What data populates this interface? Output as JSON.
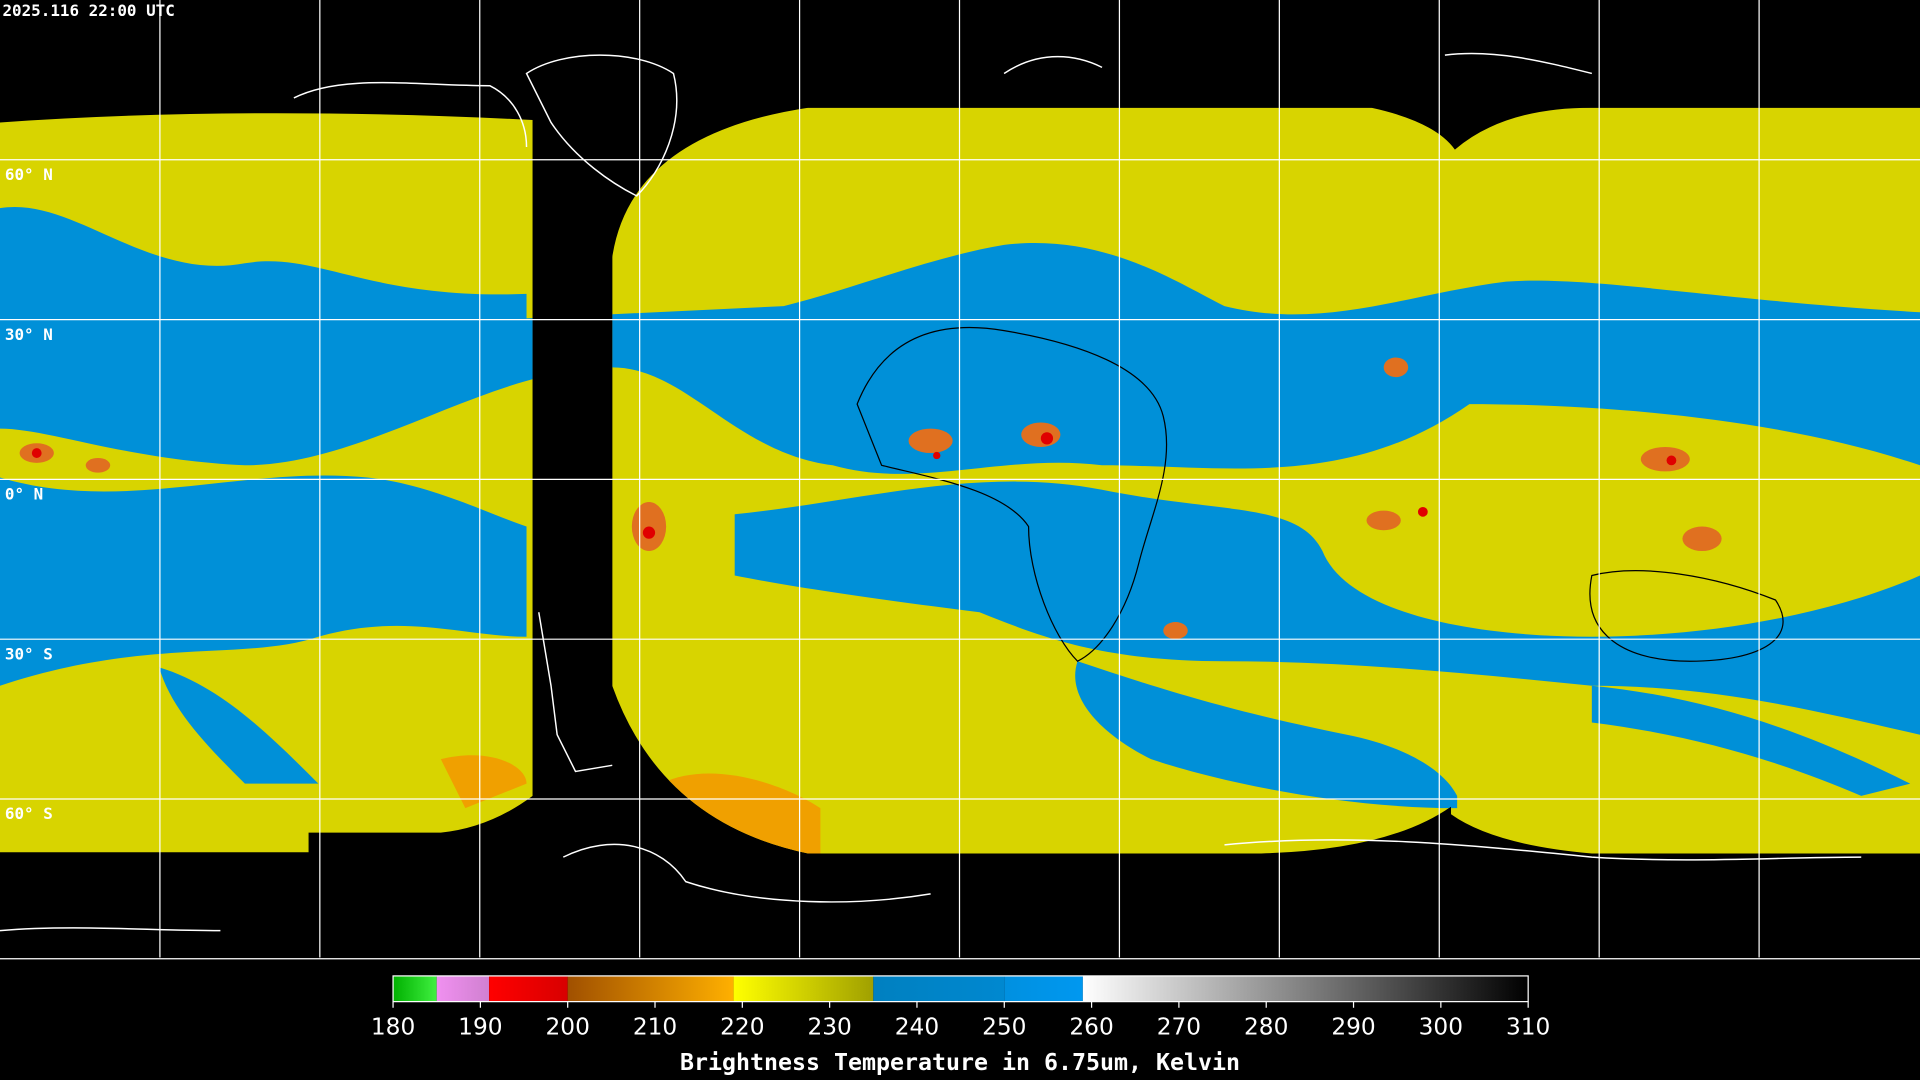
{
  "header": {
    "timestamp": "2025.116 22:00 UTC"
  },
  "map": {
    "latitude_labels": [
      "60° N",
      "30° N",
      "0° N",
      "30° S",
      "60° S"
    ]
  },
  "colorbar": {
    "title": "Brightness Temperature in 6.75um, Kelvin",
    "range": [
      180,
      310
    ],
    "ticks": [
      180,
      190,
      200,
      210,
      220,
      230,
      240,
      250,
      260,
      270,
      280,
      290,
      300,
      310
    ],
    "segments": [
      {
        "from": 180,
        "to": 185,
        "color_from": "#00b000",
        "color_to": "#40f040"
      },
      {
        "from": 185,
        "to": 191,
        "color_from": "#f090f0",
        "color_to": "#d080d0"
      },
      {
        "from": 191,
        "to": 200,
        "color_from": "#ff0000",
        "color_to": "#d80000"
      },
      {
        "from": 200,
        "to": 219,
        "color_from": "#a05000",
        "color_to": "#ffb000"
      },
      {
        "from": 219,
        "to": 235,
        "color_from": "#ffff00",
        "color_to": "#a0a000"
      },
      {
        "from": 235,
        "to": 250,
        "color_from": "#0080c0",
        "color_to": "#0088d0"
      },
      {
        "from": 250,
        "to": 259,
        "color_from": "#0090e0",
        "color_to": "#0098f0"
      },
      {
        "from": 259,
        "to": 310,
        "color_from": "#ffffff",
        "color_to": "#000000"
      }
    ]
  }
}
